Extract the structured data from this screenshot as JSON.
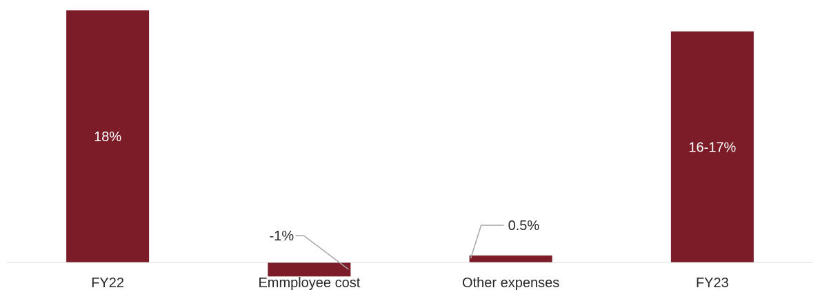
{
  "chart_data": {
    "type": "bar",
    "categories": [
      "FY22",
      "Emmployee cost",
      "Other expenses",
      "FY23"
    ],
    "values": [
      18,
      -1,
      0.5,
      16.5
    ],
    "data_labels": [
      "18%",
      "-1%",
      "0.5%",
      "16-17%"
    ],
    "title": "",
    "xlabel": "",
    "ylabel": "",
    "ylim": [
      -1.2,
      18.8
    ],
    "grid": false,
    "legend": "none",
    "bar_color": "#7b1c28",
    "inside_label_color": "#ffffff",
    "outside_label_color": "#262626",
    "axis_color": "#d9d9d9",
    "leader_color": "#a6a6a6"
  }
}
